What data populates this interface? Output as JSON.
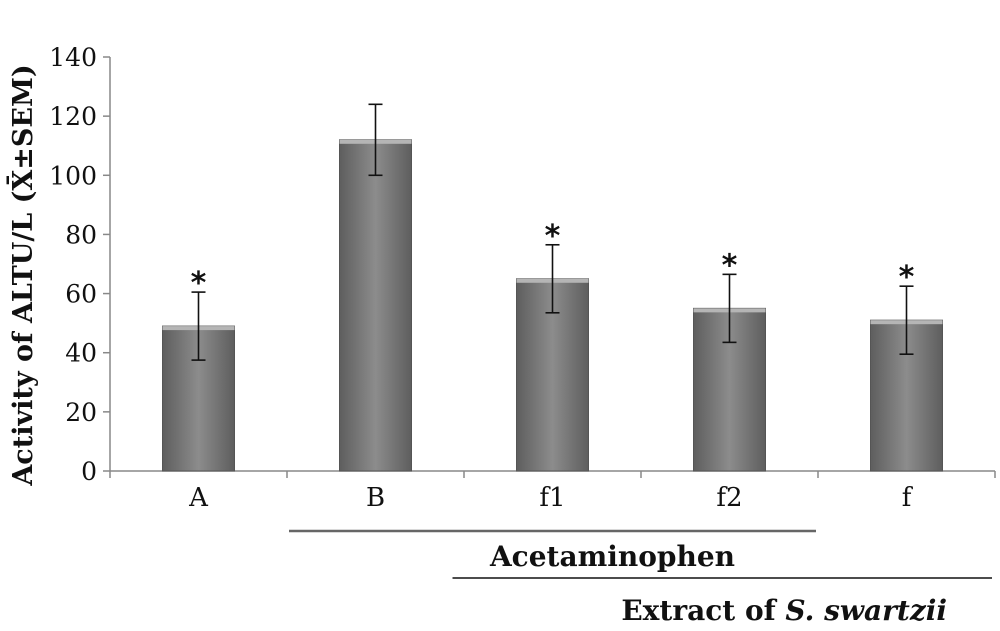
{
  "chart_data": {
    "type": "bar",
    "categories": [
      "A",
      "B",
      "f1",
      "f2",
      "f"
    ],
    "values": [
      49,
      112,
      65,
      55,
      51
    ],
    "errors": [
      11.5,
      12,
      11.5,
      11.5,
      11.5
    ],
    "significant": [
      true,
      false,
      true,
      true,
      true
    ],
    "significance_marker": "*",
    "ylabel": "Activity of ALTU/L (X̄±SEM)",
    "ylim": [
      0,
      140
    ],
    "yticks": [
      "0",
      "20",
      "40",
      "60",
      "80",
      "100",
      "120",
      "140"
    ],
    "grid": false,
    "bar_color": "#7a7a7a",
    "group_brackets": [
      {
        "label": "Acetaminophen",
        "from_category": "B",
        "to_category": "f2"
      },
      {
        "label_prefix": "Extract of ",
        "label_italic": "S. swartzii",
        "from_category": "f1",
        "to_category": "f"
      }
    ]
  }
}
